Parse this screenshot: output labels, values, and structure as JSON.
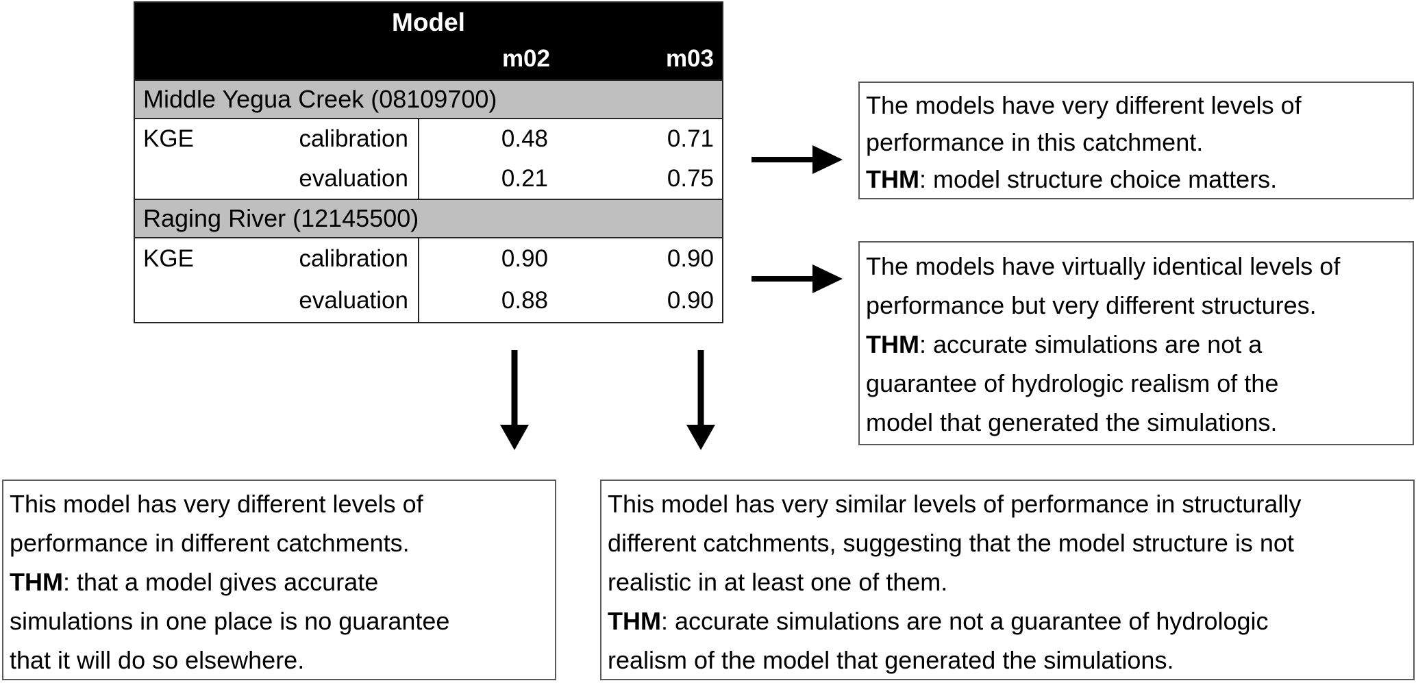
{
  "table": {
    "header": {
      "title": "Model",
      "col1": "m02",
      "col2": "m03"
    },
    "metric": "KGE",
    "sections": [
      {
        "name": "Middle Yegua Creek (08109700)",
        "rows": [
          {
            "label": "calibration",
            "m02": "0.48",
            "m03": "0.71"
          },
          {
            "label": "evaluation",
            "m02": "0.21",
            "m03": "0.75"
          }
        ]
      },
      {
        "name": "Raging River (12145500)",
        "rows": [
          {
            "label": "calibration",
            "m02": "0.90",
            "m03": "0.90"
          },
          {
            "label": "evaluation",
            "m02": "0.88",
            "m03": "0.90"
          }
        ]
      }
    ]
  },
  "annotations": {
    "right_top": {
      "lines": [
        {
          "bold": "",
          "text": "The models have very different levels of"
        },
        {
          "bold": "",
          "text": "performance in this catchment."
        },
        {
          "bold": "THM",
          "text": ": model structure choice matters."
        }
      ]
    },
    "right_mid": {
      "lines": [
        {
          "bold": "",
          "text": "The models have virtually identical levels of"
        },
        {
          "bold": "",
          "text": "performance but very different structures."
        },
        {
          "bold": "THM",
          "text": ": accurate simulations are not a"
        },
        {
          "bold": "",
          "text": "guarantee of hydrologic realism of the"
        },
        {
          "bold": "",
          "text": "model that generated the simulations."
        }
      ]
    },
    "bottom_left": {
      "lines": [
        {
          "bold": "",
          "text": "This model has very different levels of"
        },
        {
          "bold": "",
          "text": "performance in different catchments."
        },
        {
          "bold": "THM",
          "text": ": that a model gives accurate"
        },
        {
          "bold": "",
          "text": "simulations in one place is no guarantee"
        },
        {
          "bold": "",
          "text": "that it will do so elsewhere."
        }
      ]
    },
    "bottom_right": {
      "lines": [
        {
          "bold": "",
          "text": "This model has very similar levels of performance in structurally"
        },
        {
          "bold": "",
          "text": "different catchments, suggesting that the model structure is not"
        },
        {
          "bold": "",
          "text": "realistic in at least one of them."
        },
        {
          "bold": "THM",
          "text": ": accurate simulations are not a guarantee of hydrologic"
        },
        {
          "bold": "",
          "text": "realism of the model that generated the simulations."
        }
      ]
    }
  },
  "colors": {
    "header_bg": "#000000",
    "header_text": "#ffffff",
    "band_bg": "#bfbfbf",
    "text": "#000000",
    "box_border": "#595959",
    "arrow": "#000000"
  }
}
